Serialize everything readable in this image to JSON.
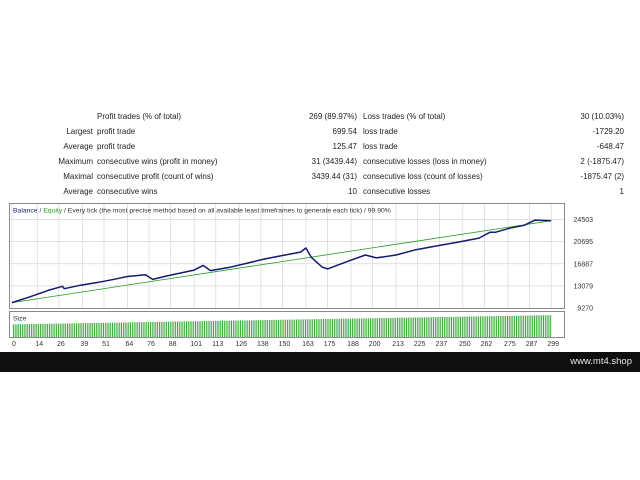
{
  "stats": {
    "rows": [
      {
        "l1": "",
        "l2": "Profit trades (% of total)",
        "v1": "269 (89.97%)",
        "l3": "Loss trades (% of total)",
        "v2": "30 (10.03%)"
      },
      {
        "l1": "Largest",
        "l2": "profit trade",
        "v1": "699.54",
        "l3": "loss trade",
        "v2": "-1729.20"
      },
      {
        "l1": "Average",
        "l2": "profit trade",
        "v1": "125.47",
        "l3": "loss trade",
        "v2": "-648.47"
      },
      {
        "l1": "Maximum",
        "l2": "consecutive wins (profit in money)",
        "v1": "31 (3439.44)",
        "l3": "consecutive losses (loss in money)",
        "v2": "2 (-1875.47)"
      },
      {
        "l1": "Maximal",
        "l2": "consecutive profit (count of wins)",
        "v1": "3439.44 (31)",
        "l3": "consecutive loss (count of losses)",
        "v2": "-1875.47 (2)"
      },
      {
        "l1": "Average",
        "l2": "consecutive wins",
        "v1": "10",
        "l3": "consecutive losses",
        "v2": "1"
      }
    ]
  },
  "chart": {
    "legend": {
      "balance": "Balance",
      "sep1": " / ",
      "equity": "Equity",
      "rest": " / Every tick (the most precise method based on all available least timeframes to generate each tick) / 99.90%"
    },
    "size_label": "Size",
    "colors": {
      "balance": "#141a6e",
      "equity": "#1e9a1e",
      "bars": "#2aa02a",
      "grid": "#d7d7d7",
      "border": "#8a8a8a"
    }
  },
  "chart_data": {
    "type": "line",
    "title": "",
    "xlabel": "",
    "ylabel": "",
    "ylim": [
      9270,
      27000
    ],
    "xlim": [
      0,
      305
    ],
    "y_ticks": [
      9270,
      13079,
      16887,
      20695,
      24503
    ],
    "x_ticks": [
      0,
      14,
      26,
      39,
      51,
      64,
      76,
      88,
      101,
      113,
      126,
      138,
      150,
      163,
      175,
      188,
      200,
      213,
      225,
      237,
      250,
      262,
      275,
      287,
      299
    ],
    "series": [
      {
        "name": "Balance",
        "x": [
          0,
          10,
          20,
          28,
          29,
          38,
          48,
          58,
          64,
          74,
          78,
          86,
          101,
          106,
          110,
          121,
          132,
          140,
          150,
          160,
          163,
          166,
          172,
          175,
          186,
          196,
          202,
          213,
          224,
          236,
          247,
          259,
          265,
          268,
          276,
          284,
          290,
          299
        ],
        "y": [
          10200,
          11200,
          12300,
          13000,
          12600,
          13200,
          13700,
          14300,
          14700,
          15000,
          14200,
          14800,
          15800,
          16600,
          15700,
          16300,
          17100,
          17700,
          18300,
          18900,
          19600,
          18000,
          16300,
          16000,
          17300,
          18400,
          17900,
          18400,
          19300,
          20000,
          20600,
          21300,
          22300,
          22300,
          23000,
          23500,
          24400,
          24300
        ]
      },
      {
        "name": "Equity",
        "x": [
          0,
          299
        ],
        "y": [
          10200,
          24300
        ]
      }
    ],
    "size_bars": {
      "count": 299,
      "start_height": 0.55,
      "end_height": 0.95
    }
  },
  "footer": {
    "url": "www.mt4.shop"
  }
}
